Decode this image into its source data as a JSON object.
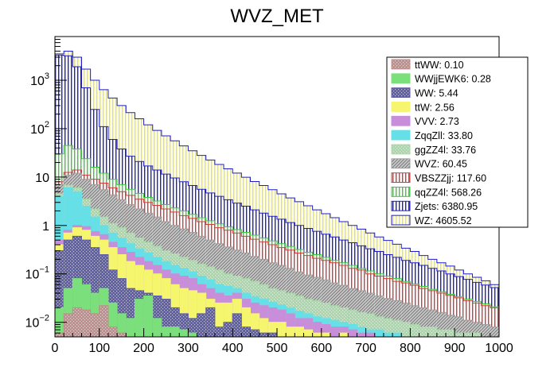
{
  "chart_data": {
    "type": "stacked-histogram",
    "title": "WVZ_MET",
    "xlabel": "",
    "ylabel": "",
    "x_range": [
      0,
      1000
    ],
    "bin_width": 20,
    "y_scale": "log",
    "ylim": [
      0.005,
      8000
    ],
    "x_ticks": [
      "0",
      "100",
      "200",
      "300",
      "400",
      "500",
      "600",
      "700",
      "800",
      "900",
      "1000"
    ],
    "y_ticks": [
      {
        "value": 0.01,
        "base": "10",
        "exp": "−2"
      },
      {
        "value": 0.1,
        "base": "10",
        "exp": "−1"
      },
      {
        "value": 1,
        "base": "1",
        "exp": ""
      },
      {
        "value": 10,
        "base": "10",
        "exp": ""
      },
      {
        "value": 100,
        "base": "10",
        "exp": "2"
      },
      {
        "value": 1000,
        "base": "10",
        "exp": "3"
      }
    ],
    "legend_position": "top-right",
    "stack_order_bottom_to_top": [
      "ttWW",
      "WWjjEWK6",
      "WW",
      "ttW",
      "VVV",
      "ZqqZll",
      "ggZZ4l",
      "WVZ",
      "VBSZZjj",
      "qqZZ4l",
      "Zjets",
      "WZ"
    ],
    "legend": [
      {
        "name": "ttWW",
        "label": "ttWW: 0.10",
        "color": "#c08c8c",
        "pattern": "dots"
      },
      {
        "name": "WWjjEWK6",
        "label": "WWjjEWK6: 0.28",
        "color": "#7be07b",
        "pattern": "solid"
      },
      {
        "name": "WW",
        "label": "WW: 5.44",
        "color": "#5e5ea8",
        "pattern": "dots"
      },
      {
        "name": "ttW",
        "label": "ttW: 2.56",
        "color": "#f5f56e",
        "pattern": "solid"
      },
      {
        "name": "VVV",
        "label": "VVV: 2.73",
        "color": "#c98ed9",
        "pattern": "solid"
      },
      {
        "name": "ZqqZll",
        "label": "ZqqZll: 33.80",
        "color": "#66e0e6",
        "pattern": "solid"
      },
      {
        "name": "ggZZ4l",
        "label": "ggZZ4l: 33.76",
        "color": "#a8d8a8",
        "pattern": "dots"
      },
      {
        "name": "WVZ",
        "label": "WVZ: 60.45",
        "color": "#a0a0a0",
        "pattern": "hatch"
      },
      {
        "name": "VBSZZjj",
        "label": "VBSZZjj: 117.60",
        "color": "#d23c3c",
        "pattern": "vlines"
      },
      {
        "name": "qqZZ4l",
        "label": "qqZZ4l: 568.26",
        "color": "#3cc83c",
        "pattern": "vlines"
      },
      {
        "name": "Zjets",
        "label": "Zjets: 6380.95",
        "color": "#1e1ec8",
        "pattern": "vlines"
      },
      {
        "name": "WZ",
        "label": "WZ: 4605.52",
        "color": "#e8e820",
        "pattern": "vlines-light"
      }
    ],
    "stack_top_edges": {
      "ttWW": [
        0.006,
        0.015,
        0.02,
        0.018,
        0.015,
        0.022,
        0.008,
        0.006,
        0.005,
        0.005,
        0.005,
        0.005,
        0.005,
        0.005,
        0.005,
        0.005,
        0.005,
        0.005,
        0.005,
        0.005,
        0.005,
        0.005,
        0.005,
        0.005,
        0.005,
        0.005,
        0.005,
        0.005,
        0.005,
        0.005,
        0.005,
        0.005,
        0.005,
        0.005,
        0.005,
        0.005,
        0.005,
        0.005,
        0.005,
        0.005,
        0.005,
        0.005,
        0.005,
        0.005,
        0.005,
        0.005,
        0.005,
        0.005,
        0.005,
        0.005
      ],
      "WWjjEWK6": [
        0.02,
        0.05,
        0.08,
        0.06,
        0.04,
        0.05,
        0.025,
        0.015,
        0.012,
        0.03,
        0.035,
        0.012,
        0.008,
        0.008,
        0.007,
        0.006,
        0.005,
        0.005,
        0.005,
        0.005,
        0.005,
        0.005,
        0.005,
        0.005,
        0.005,
        0.005,
        0.005,
        0.005,
        0.005,
        0.005,
        0.005,
        0.005,
        0.005,
        0.005,
        0.005,
        0.005,
        0.005,
        0.005,
        0.005,
        0.005,
        0.005,
        0.005,
        0.005,
        0.005,
        0.005,
        0.005,
        0.005,
        0.005,
        0.005,
        0.005
      ],
      "WW": [
        0.3,
        0.5,
        0.6,
        0.5,
        0.35,
        0.25,
        0.12,
        0.08,
        0.05,
        0.045,
        0.04,
        0.035,
        0.03,
        0.02,
        0.015,
        0.012,
        0.015,
        0.02,
        0.008,
        0.01,
        0.015,
        0.008,
        0.007,
        0.006,
        0.006,
        0.005,
        0.005,
        0.005,
        0.005,
        0.005,
        0.005,
        0.005,
        0.005,
        0.005,
        0.005,
        0.005,
        0.005,
        0.005,
        0.005,
        0.005,
        0.005,
        0.005,
        0.005,
        0.005,
        0.005,
        0.005,
        0.005,
        0.005,
        0.005,
        0.005
      ],
      "ttW": [
        0.4,
        0.7,
        0.9,
        0.8,
        0.6,
        0.5,
        0.35,
        0.25,
        0.18,
        0.15,
        0.12,
        0.1,
        0.08,
        0.06,
        0.05,
        0.045,
        0.04,
        0.03,
        0.025,
        0.025,
        0.03,
        0.02,
        0.015,
        0.012,
        0.01,
        0.01,
        0.008,
        0.008,
        0.007,
        0.006,
        0.006,
        0.005,
        0.006,
        0.005,
        0.005,
        0.005,
        0.005,
        0.005,
        0.005,
        0.005,
        0.005,
        0.005,
        0.005,
        0.005,
        0.005,
        0.005,
        0.005,
        0.005,
        0.005,
        0.005
      ],
      "VVV": [
        0.5,
        0.8,
        1.0,
        0.95,
        0.75,
        0.65,
        0.45,
        0.35,
        0.28,
        0.22,
        0.18,
        0.15,
        0.12,
        0.1,
        0.09,
        0.08,
        0.06,
        0.05,
        0.04,
        0.035,
        0.04,
        0.03,
        0.025,
        0.022,
        0.02,
        0.018,
        0.015,
        0.012,
        0.012,
        0.01,
        0.009,
        0.008,
        0.008,
        0.007,
        0.006,
        0.006,
        0.005,
        0.005,
        0.005,
        0.005,
        0.005,
        0.005,
        0.005,
        0.005,
        0.005,
        0.005,
        0.005,
        0.005,
        0.005,
        0.005
      ],
      "ZqqZll": [
        4.0,
        6.0,
        5.0,
        2.5,
        1.5,
        1.0,
        0.7,
        0.55,
        0.42,
        0.33,
        0.27,
        0.22,
        0.18,
        0.15,
        0.13,
        0.11,
        0.09,
        0.075,
        0.06,
        0.055,
        0.05,
        0.04,
        0.034,
        0.03,
        0.026,
        0.023,
        0.02,
        0.017,
        0.015,
        0.013,
        0.012,
        0.011,
        0.01,
        0.009,
        0.008,
        0.007,
        0.007,
        0.006,
        0.006,
        0.005,
        0.005,
        0.005,
        0.005,
        0.005,
        0.005,
        0.005,
        0.005,
        0.005,
        0.005,
        0.005
      ],
      "ggZZ4l": [
        4.5,
        6.8,
        6.0,
        3.5,
        2.2,
        1.5,
        1.1,
        0.9,
        0.7,
        0.55,
        0.45,
        0.37,
        0.3,
        0.26,
        0.22,
        0.19,
        0.16,
        0.14,
        0.12,
        0.1,
        0.09,
        0.08,
        0.07,
        0.06,
        0.05,
        0.045,
        0.04,
        0.035,
        0.03,
        0.028,
        0.025,
        0.022,
        0.02,
        0.018,
        0.016,
        0.015,
        0.013,
        0.012,
        0.011,
        0.01,
        0.009,
        0.008,
        0.008,
        0.007,
        0.007,
        0.006,
        0.006,
        0.006,
        0.005,
        0.005
      ],
      "WVZ": [
        7.0,
        11.0,
        12.0,
        9.0,
        7.0,
        5.5,
        4.3,
        3.4,
        2.7,
        2.2,
        1.8,
        1.5,
        1.2,
        1.0,
        0.85,
        0.72,
        0.6,
        0.5,
        0.42,
        0.36,
        0.31,
        0.27,
        0.23,
        0.2,
        0.17,
        0.15,
        0.13,
        0.11,
        0.095,
        0.085,
        0.075,
        0.065,
        0.058,
        0.05,
        0.045,
        0.04,
        0.035,
        0.031,
        0.028,
        0.025,
        0.022,
        0.02,
        0.018,
        0.016,
        0.014,
        0.013,
        0.011,
        0.01,
        0.009,
        0.008
      ],
      "VBSZZjj": [
        8.0,
        12.5,
        14.0,
        11.0,
        9.0,
        7.5,
        6.0,
        5.0,
        4.2,
        3.5,
        3.0,
        2.6,
        2.2,
        1.9,
        1.6,
        1.4,
        1.2,
        1.05,
        0.9,
        0.8,
        0.7,
        0.6,
        0.52,
        0.46,
        0.4,
        0.35,
        0.31,
        0.27,
        0.24,
        0.21,
        0.19,
        0.17,
        0.15,
        0.13,
        0.12,
        0.1,
        0.09,
        0.08,
        0.07,
        0.065,
        0.058,
        0.05,
        0.045,
        0.04,
        0.036,
        0.032,
        0.028,
        0.025,
        0.022,
        0.02
      ],
      "qqZZ4l": [
        30.0,
        45.0,
        38.0,
        24.0,
        16.0,
        12.0,
        9.0,
        7.0,
        5.6,
        4.6,
        3.8,
        3.2,
        2.7,
        2.3,
        2.0,
        1.7,
        1.45,
        1.25,
        1.08,
        0.94,
        0.82,
        0.72,
        0.63,
        0.55,
        0.48,
        0.42,
        0.37,
        0.32,
        0.28,
        0.25,
        0.22,
        0.19,
        0.17,
        0.15,
        0.13,
        0.115,
        0.1,
        0.09,
        0.08,
        0.07,
        0.062,
        0.055,
        0.048,
        0.043,
        0.038,
        0.034,
        0.03,
        0.027,
        0.024,
        0.021
      ],
      "Zjets": [
        3300,
        3200,
        1900,
        700,
        250,
        110,
        60,
        38,
        27,
        21,
        17,
        14,
        11.5,
        9.6,
        8.0,
        6.7,
        5.6,
        4.7,
        4.0,
        3.4,
        2.9,
        2.5,
        2.1,
        1.8,
        1.55,
        1.35,
        1.15,
        1.0,
        0.87,
        0.76,
        0.66,
        0.58,
        0.5,
        0.44,
        0.38,
        0.33,
        0.29,
        0.25,
        0.22,
        0.19,
        0.17,
        0.15,
        0.13,
        0.115,
        0.1,
        0.088,
        0.077,
        0.067,
        0.059,
        0.052
      ],
      "WZ": [
        3500,
        4000,
        3000,
        1700,
        1000,
        640,
        430,
        300,
        215,
        160,
        120,
        92,
        71,
        56,
        44,
        35,
        28,
        22.5,
        18.2,
        14.8,
        12.1,
        9.9,
        8.1,
        6.7,
        5.5,
        4.5,
        3.7,
        3.1,
        2.55,
        2.1,
        1.75,
        1.45,
        1.2,
        1.0,
        0.84,
        0.7,
        0.58,
        0.49,
        0.41,
        0.34,
        0.29,
        0.24,
        0.2,
        0.17,
        0.145,
        0.12,
        0.1,
        0.085,
        0.072,
        0.06
      ]
    }
  }
}
